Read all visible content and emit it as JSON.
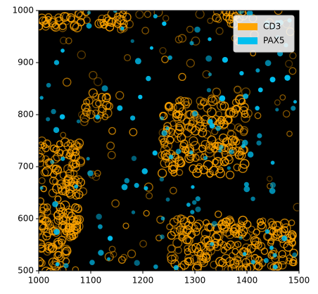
{
  "chart_data": {
    "type": "image",
    "xlim": [
      1000,
      1500
    ],
    "ylim": [
      500,
      1000
    ],
    "xticks": [
      1000,
      1100,
      1200,
      1300,
      1400,
      1500
    ],
    "yticks": [
      500,
      600,
      700,
      800,
      900,
      1000
    ],
    "series": [
      {
        "name": "CD3",
        "color": "#ffa500"
      },
      {
        "name": "PAX5",
        "color": "#00bfef"
      }
    ],
    "legend": "upper right"
  }
}
